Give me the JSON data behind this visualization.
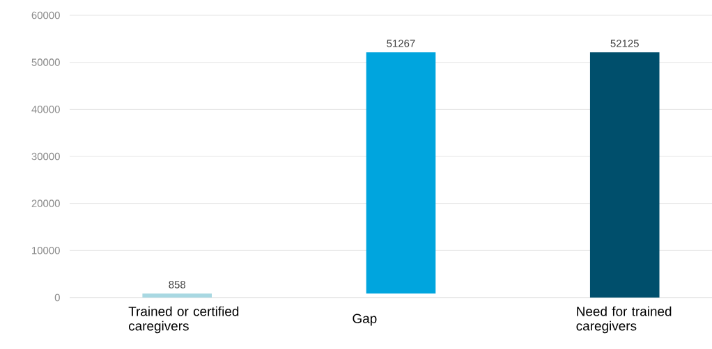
{
  "chart_data": {
    "type": "bar",
    "categories": [
      "Trained or certified caregivers",
      "Gap",
      "Need for trained caregivers"
    ],
    "values": [
      858,
      51267,
      52125
    ],
    "base": [
      0,
      858,
      0
    ],
    "colors": [
      "#a8d8e2",
      "#00a5de",
      "#004f6c"
    ],
    "value_labels": [
      "858",
      "51267",
      "52125"
    ],
    "ylim": [
      0,
      60000
    ],
    "yticks": [
      0,
      10000,
      20000,
      30000,
      40000,
      50000,
      60000
    ],
    "grid": "y"
  }
}
